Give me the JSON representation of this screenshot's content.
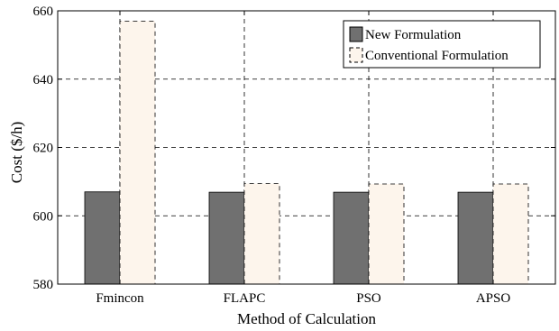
{
  "chart_data": {
    "type": "bar",
    "categories": [
      "Fmincon",
      "FLAPC",
      "PSO",
      "APSO"
    ],
    "series": [
      {
        "name": "New Formulation",
        "values": [
          607.0,
          606.9,
          606.9,
          606.9
        ],
        "color": "#707070",
        "stroke": "#000000"
      },
      {
        "name": "Conventional Formulation",
        "values": [
          657.0,
          609.4,
          609.3,
          609.3
        ],
        "color": "#fdf5ec",
        "stroke": "#000000"
      }
    ],
    "xlabel": "Method of Calculation",
    "ylabel": "Cost ($/h)",
    "ylim": [
      580,
      660
    ],
    "yticks": [
      580,
      600,
      620,
      640,
      660
    ],
    "grid": true,
    "grid_style": "dashed",
    "legend_position": "top-right"
  }
}
